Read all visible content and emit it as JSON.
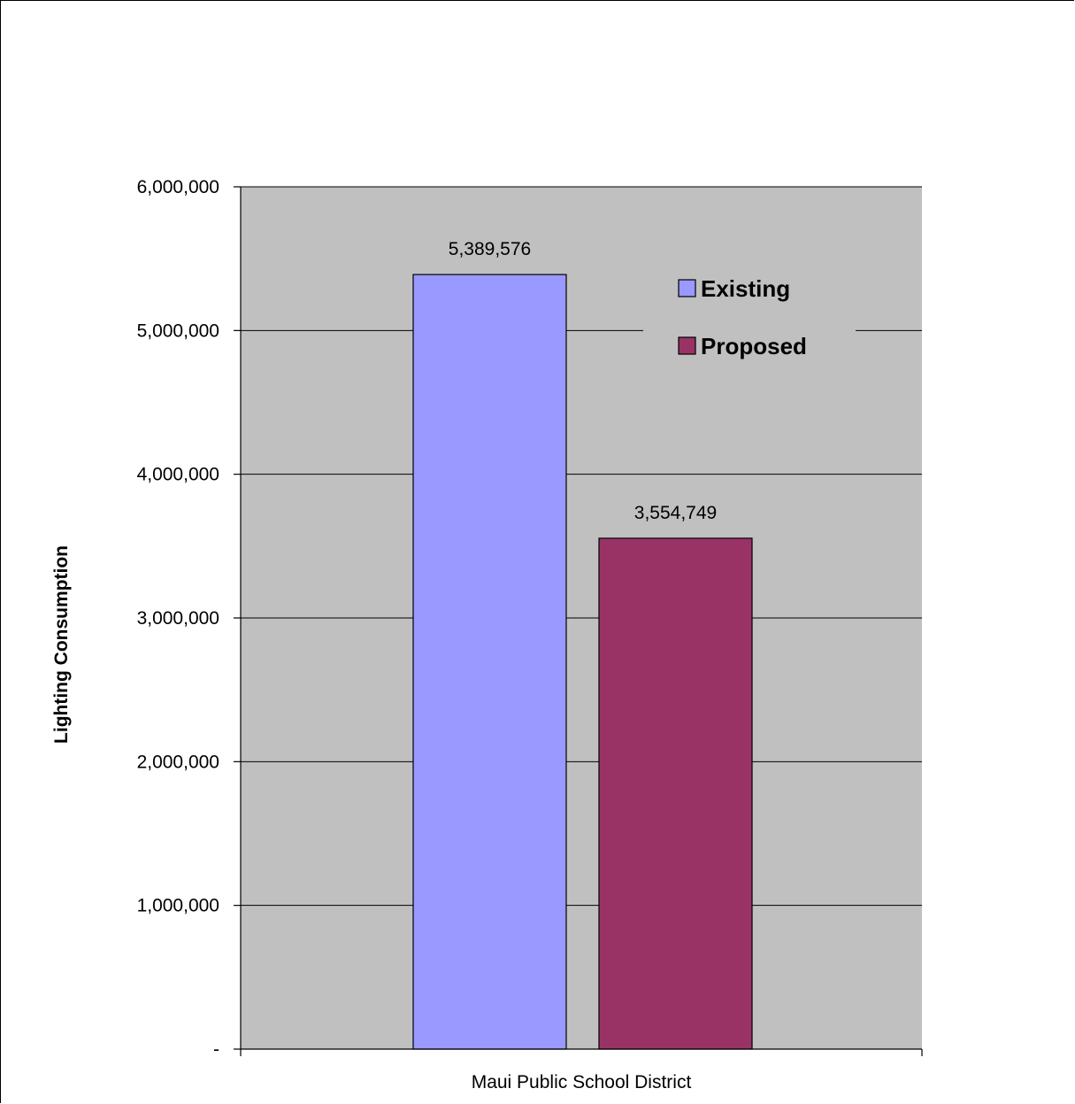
{
  "colors": {
    "plot_background": "#c0c0c0",
    "gridline": "#000000",
    "existing": "#9999ff",
    "proposed": "#993366",
    "frame": "#000000"
  },
  "chart_data": {
    "type": "bar",
    "title": "",
    "xlabel": "",
    "ylabel": "Lighting Consumption",
    "categories": [
      "Maui Public School District"
    ],
    "series": [
      {
        "name": "Existing",
        "values": [
          5389576
        ],
        "labels": [
          "5,389,576"
        ]
      },
      {
        "name": "Proposed",
        "values": [
          3554749
        ],
        "labels": [
          "3,554,749"
        ]
      }
    ],
    "ylim": [
      0,
      6000000
    ],
    "yticks": [
      0,
      1000000,
      2000000,
      3000000,
      4000000,
      5000000,
      6000000
    ],
    "ytick_labels": [
      "-",
      "1,000,000",
      "2,000,000",
      "3,000,000",
      "4,000,000",
      "5,000,000",
      "6,000,000"
    ],
    "grid": true,
    "legend_position": "top-right",
    "legend_entries": [
      "Existing",
      "Proposed"
    ]
  }
}
